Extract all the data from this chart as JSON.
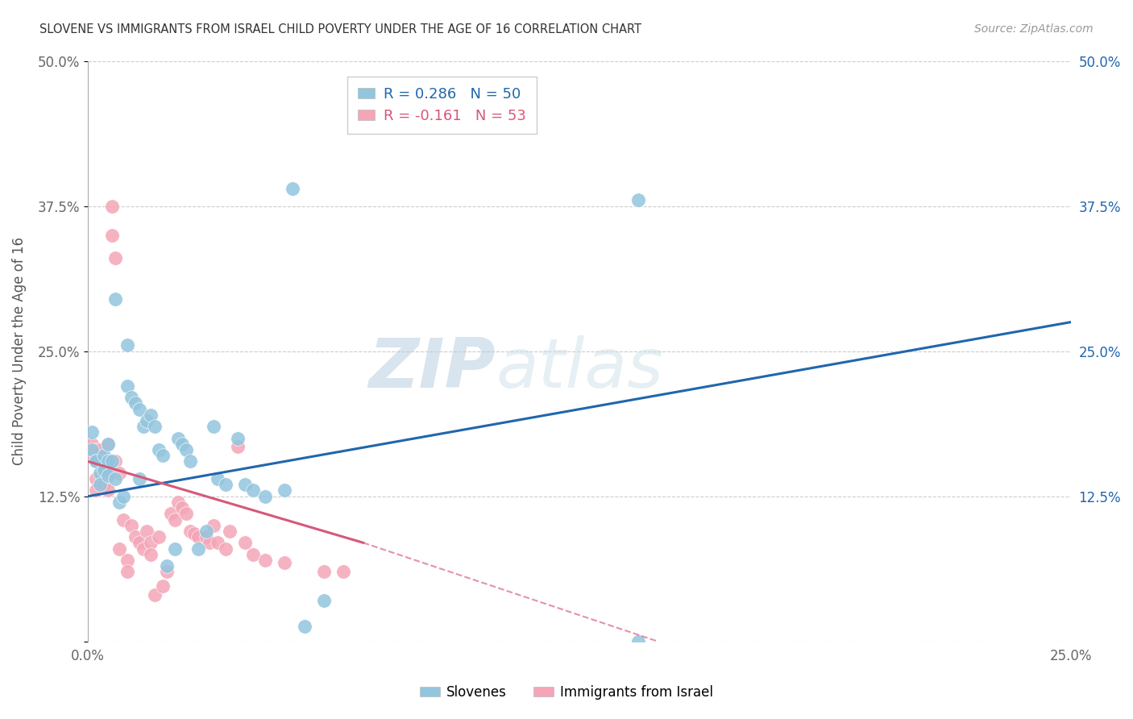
{
  "title": "SLOVENE VS IMMIGRANTS FROM ISRAEL CHILD POVERTY UNDER THE AGE OF 16 CORRELATION CHART",
  "source": "Source: ZipAtlas.com",
  "ylabel": "Child Poverty Under the Age of 16",
  "xlim": [
    0.0,
    0.25
  ],
  "ylim": [
    0.0,
    0.5
  ],
  "xticks": [
    0.0,
    0.0625,
    0.125,
    0.1875,
    0.25
  ],
  "yticks": [
    0.0,
    0.125,
    0.25,
    0.375,
    0.5
  ],
  "blue_color": "#92c5de",
  "pink_color": "#f4a6b8",
  "blue_line_color": "#2166ac",
  "pink_line_color": "#d6587a",
  "watermark_zip": "ZIP",
  "watermark_atlas": "atlas",
  "bottom_legend_blue": "Slovenes",
  "bottom_legend_pink": "Immigrants from Israel",
  "blue_line_x0": 0.0,
  "blue_line_y0": 0.125,
  "blue_line_x1": 0.25,
  "blue_line_y1": 0.275,
  "pink_line_x0": 0.0,
  "pink_line_y0": 0.155,
  "pink_line_x1_solid": 0.07,
  "pink_line_y1_solid": 0.085,
  "pink_line_x1_dash": 0.145,
  "pink_line_y1_dash": 0.0,
  "blue_scatter_x": [
    0.001,
    0.001,
    0.002,
    0.002,
    0.003,
    0.003,
    0.004,
    0.004,
    0.005,
    0.005,
    0.005,
    0.006,
    0.007,
    0.007,
    0.008,
    0.009,
    0.01,
    0.01,
    0.011,
    0.012,
    0.013,
    0.013,
    0.014,
    0.015,
    0.016,
    0.017,
    0.018,
    0.019,
    0.02,
    0.022,
    0.023,
    0.024,
    0.025,
    0.026,
    0.028,
    0.03,
    0.032,
    0.033,
    0.035,
    0.038,
    0.04,
    0.042,
    0.045,
    0.05,
    0.055,
    0.06,
    0.14,
    0.052,
    0.085,
    0.14
  ],
  "blue_scatter_y": [
    0.165,
    0.18,
    0.155,
    0.155,
    0.145,
    0.135,
    0.16,
    0.148,
    0.155,
    0.143,
    0.17,
    0.155,
    0.295,
    0.14,
    0.12,
    0.125,
    0.255,
    0.22,
    0.21,
    0.205,
    0.2,
    0.14,
    0.185,
    0.19,
    0.195,
    0.185,
    0.165,
    0.16,
    0.065,
    0.08,
    0.175,
    0.17,
    0.165,
    0.155,
    0.08,
    0.095,
    0.185,
    0.14,
    0.135,
    0.175,
    0.135,
    0.13,
    0.125,
    0.13,
    0.013,
    0.035,
    0.38,
    0.39,
    0.455,
    0.0
  ],
  "pink_scatter_x": [
    0.001,
    0.001,
    0.002,
    0.002,
    0.002,
    0.003,
    0.003,
    0.004,
    0.004,
    0.005,
    0.005,
    0.005,
    0.006,
    0.006,
    0.007,
    0.007,
    0.008,
    0.008,
    0.009,
    0.01,
    0.01,
    0.011,
    0.012,
    0.013,
    0.014,
    0.015,
    0.016,
    0.016,
    0.017,
    0.018,
    0.019,
    0.02,
    0.021,
    0.022,
    0.023,
    0.024,
    0.025,
    0.026,
    0.027,
    0.028,
    0.03,
    0.031,
    0.032,
    0.033,
    0.035,
    0.036,
    0.038,
    0.04,
    0.042,
    0.045,
    0.05,
    0.06,
    0.065
  ],
  "pink_scatter_y": [
    0.17,
    0.16,
    0.165,
    0.14,
    0.13,
    0.165,
    0.155,
    0.145,
    0.135,
    0.145,
    0.13,
    0.17,
    0.375,
    0.35,
    0.33,
    0.155,
    0.145,
    0.08,
    0.105,
    0.07,
    0.06,
    0.1,
    0.09,
    0.085,
    0.08,
    0.095,
    0.085,
    0.075,
    0.04,
    0.09,
    0.048,
    0.06,
    0.11,
    0.105,
    0.12,
    0.115,
    0.11,
    0.095,
    0.093,
    0.09,
    0.09,
    0.085,
    0.1,
    0.085,
    0.08,
    0.095,
    0.168,
    0.085,
    0.075,
    0.07,
    0.068,
    0.06,
    0.06
  ]
}
